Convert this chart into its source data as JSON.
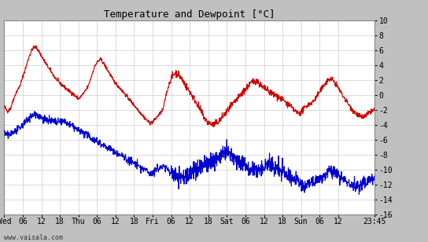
{
  "title": "Temperature and Dewpoint [°C]",
  "ylim": [
    -16,
    10
  ],
  "yticks": [
    -16,
    -14,
    -12,
    -10,
    -8,
    -6,
    -4,
    -2,
    0,
    2,
    4,
    6,
    8,
    10
  ],
  "outer_bg": "#c0c0c0",
  "plot_bg_color": "#ffffff",
  "grid_color": "#cccccc",
  "temp_color": "#cc0000",
  "dewp_color": "#0000cc",
  "linewidth": 0.8,
  "watermark": "www.vaisala.com",
  "xtick_labels": [
    "Wed",
    "06",
    "12",
    "18",
    "Thu",
    "06",
    "12",
    "18",
    "Fri",
    "06",
    "12",
    "18",
    "Sat",
    "06",
    "12",
    "18",
    "Sun",
    "06",
    "12",
    "23:45"
  ],
  "xtick_positions": [
    0,
    6,
    12,
    18,
    24,
    30,
    36,
    42,
    48,
    54,
    60,
    66,
    72,
    78,
    84,
    90,
    96,
    102,
    108,
    119.75
  ],
  "total_hours": 119.75,
  "temp_data": [
    -1.5,
    -2.2,
    -1.8,
    -0.5,
    0.5,
    1.2,
    2.5,
    3.8,
    5.2,
    6.2,
    6.5,
    6.0,
    5.2,
    4.5,
    3.8,
    3.2,
    2.5,
    2.0,
    1.5,
    1.2,
    0.8,
    0.5,
    0.2,
    -0.2,
    -0.5,
    0.0,
    0.5,
    1.2,
    2.5,
    3.8,
    4.5,
    4.8,
    4.2,
    3.5,
    2.8,
    2.0,
    1.5,
    1.0,
    0.5,
    0.0,
    -0.5,
    -1.0,
    -1.5,
    -2.0,
    -2.5,
    -3.0,
    -3.5,
    -3.8,
    -3.5,
    -3.0,
    -2.5,
    -2.0,
    0.0,
    1.5,
    2.5,
    3.0,
    2.8,
    2.2,
    1.5,
    0.8,
    0.2,
    -0.5,
    -1.2,
    -2.0,
    -2.8,
    -3.5,
    -3.8,
    -4.0,
    -3.8,
    -3.5,
    -3.0,
    -2.5,
    -2.0,
    -1.5,
    -1.0,
    -0.5,
    0.0,
    0.5,
    1.0,
    1.5,
    1.8,
    2.0,
    1.5,
    1.0,
    0.8,
    0.5,
    0.2,
    0.0,
    -0.2,
    -0.5,
    -0.8,
    -1.2,
    -1.5,
    -2.0,
    -2.3,
    -2.5,
    -2.0,
    -1.5,
    -1.2,
    -1.0,
    -0.5,
    0.2,
    0.8,
    1.5,
    2.0,
    2.2,
    1.8,
    1.2,
    0.5,
    -0.2,
    -0.8,
    -1.5,
    -2.0,
    -2.5,
    -2.8,
    -3.0,
    -2.8,
    -2.5,
    -2.2,
    -2.0
  ],
  "dewp_data": [
    -5.0,
    -5.5,
    -5.2,
    -5.0,
    -4.8,
    -4.5,
    -4.0,
    -3.5,
    -3.0,
    -2.8,
    -2.5,
    -2.8,
    -3.0,
    -3.2,
    -3.5,
    -3.5,
    -3.5,
    -3.8,
    -3.5,
    -3.5,
    -3.8,
    -4.0,
    -4.2,
    -4.5,
    -4.8,
    -5.0,
    -5.2,
    -5.5,
    -5.8,
    -6.0,
    -6.2,
    -6.5,
    -6.8,
    -7.0,
    -7.2,
    -7.5,
    -7.8,
    -8.0,
    -8.2,
    -8.5,
    -8.8,
    -9.0,
    -9.2,
    -9.5,
    -9.8,
    -10.0,
    -10.2,
    -10.5,
    -10.3,
    -10.0,
    -9.8,
    -9.5,
    -9.8,
    -10.2,
    -10.5,
    -10.8,
    -11.0,
    -11.2,
    -11.0,
    -10.8,
    -10.5,
    -10.2,
    -10.0,
    -9.8,
    -9.5,
    -9.2,
    -9.0,
    -8.8,
    -8.5,
    -8.2,
    -8.0,
    -7.8,
    -8.0,
    -8.2,
    -8.5,
    -8.8,
    -9.0,
    -9.2,
    -9.5,
    -9.8,
    -10.0,
    -10.2,
    -10.0,
    -9.8,
    -9.5,
    -9.2,
    -9.5,
    -9.8,
    -10.0,
    -10.2,
    -10.5,
    -10.8,
    -11.0,
    -11.2,
    -11.5,
    -11.8,
    -12.0,
    -12.2,
    -12.0,
    -11.8,
    -11.5,
    -11.2,
    -11.0,
    -10.8,
    -10.5,
    -10.2,
    -10.5,
    -10.8,
    -11.0,
    -11.2,
    -11.5,
    -11.8,
    -12.0,
    -12.2,
    -12.5,
    -12.0,
    -11.8,
    -11.5,
    -11.2,
    -11.0
  ]
}
